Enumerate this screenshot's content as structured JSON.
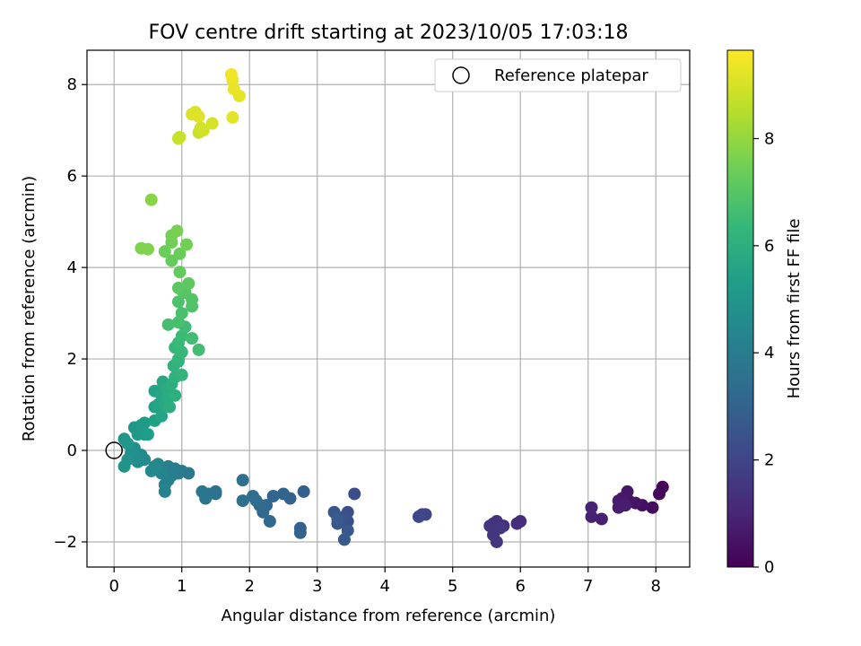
{
  "chart_data": {
    "type": "scatter",
    "title": "FOV centre drift starting at 2023/10/05 17:03:18",
    "xlabel": "Angular distance from reference (arcmin)",
    "ylabel": "Rotation from reference (arcmin)",
    "xlim": [
      -0.4,
      8.5
    ],
    "ylim": [
      -2.55,
      8.75
    ],
    "xticks": [
      0,
      1,
      2,
      3,
      4,
      5,
      6,
      7,
      8
    ],
    "yticks": [
      -2,
      0,
      2,
      4,
      6,
      8
    ],
    "grid": true,
    "legend": {
      "placement": "top-right",
      "entries": [
        "Reference platepar"
      ]
    },
    "reference_point": {
      "x": 0,
      "y": 0
    },
    "colorbar": {
      "label": "Hours from first FF file",
      "range": [
        0,
        9.65
      ],
      "ticks": [
        0,
        2,
        4,
        6,
        8
      ],
      "colormap": [
        "#440154",
        "#482878",
        "#3e4989",
        "#31688e",
        "#26828e",
        "#1f9e89",
        "#35b779",
        "#6ece58",
        "#b5de2b",
        "#fde725"
      ]
    },
    "marker_size": 7,
    "series": [
      {
        "points": [
          {
            "x": 8.1,
            "y": -0.8,
            "c": 0.1
          },
          {
            "x": 8.05,
            "y": -0.95,
            "c": 0.2
          },
          {
            "x": 7.95,
            "y": -1.25,
            "c": 0.3
          },
          {
            "x": 7.8,
            "y": -1.2,
            "c": 0.4
          },
          {
            "x": 7.7,
            "y": -1.15,
            "c": 0.5
          },
          {
            "x": 7.6,
            "y": -1.1,
            "c": 0.55
          },
          {
            "x": 7.58,
            "y": -0.9,
            "c": 0.6
          },
          {
            "x": 7.5,
            "y": -1.05,
            "c": 0.65
          },
          {
            "x": 7.45,
            "y": -1.1,
            "c": 0.7
          },
          {
            "x": 7.45,
            "y": -1.25,
            "c": 0.75
          },
          {
            "x": 7.55,
            "y": -1.2,
            "c": 0.8
          },
          {
            "x": 7.2,
            "y": -1.5,
            "c": 0.85
          },
          {
            "x": 7.05,
            "y": -1.45,
            "c": 0.9
          },
          {
            "x": 7.05,
            "y": -1.25,
            "c": 0.95
          },
          {
            "x": 6.0,
            "y": -1.55,
            "c": 1.2
          },
          {
            "x": 5.95,
            "y": -1.6,
            "c": 1.25
          },
          {
            "x": 5.75,
            "y": -1.65,
            "c": 1.3
          },
          {
            "x": 5.65,
            "y": -1.55,
            "c": 1.35
          },
          {
            "x": 5.6,
            "y": -1.6,
            "c": 1.4
          },
          {
            "x": 5.55,
            "y": -1.65,
            "c": 1.45
          },
          {
            "x": 5.6,
            "y": -1.85,
            "c": 1.5
          },
          {
            "x": 5.65,
            "y": -2.0,
            "c": 1.55
          },
          {
            "x": 5.7,
            "y": -1.7,
            "c": 1.6
          },
          {
            "x": 4.6,
            "y": -1.4,
            "c": 2.0
          },
          {
            "x": 4.55,
            "y": -1.4,
            "c": 2.05
          },
          {
            "x": 4.5,
            "y": -1.45,
            "c": 2.1
          },
          {
            "x": 3.55,
            "y": -0.95,
            "c": 2.3
          },
          {
            "x": 3.45,
            "y": -1.35,
            "c": 2.35
          },
          {
            "x": 3.45,
            "y": -1.55,
            "c": 2.4
          },
          {
            "x": 3.4,
            "y": -1.45,
            "c": 2.45
          },
          {
            "x": 3.35,
            "y": -1.5,
            "c": 2.5
          },
          {
            "x": 3.3,
            "y": -1.6,
            "c": 2.55
          },
          {
            "x": 3.25,
            "y": -1.35,
            "c": 2.6
          },
          {
            "x": 3.45,
            "y": -1.75,
            "c": 2.65
          },
          {
            "x": 3.4,
            "y": -1.95,
            "c": 2.7
          },
          {
            "x": 3.3,
            "y": -1.5,
            "c": 2.75
          },
          {
            "x": 2.8,
            "y": -0.9,
            "c": 2.9
          },
          {
            "x": 2.75,
            "y": -1.7,
            "c": 2.95
          },
          {
            "x": 2.75,
            "y": -1.8,
            "c": 3.0
          },
          {
            "x": 2.6,
            "y": -1.05,
            "c": 3.05
          },
          {
            "x": 2.5,
            "y": -0.95,
            "c": 3.1
          },
          {
            "x": 2.35,
            "y": -1.0,
            "c": 3.15
          },
          {
            "x": 2.3,
            "y": -1.55,
            "c": 3.2
          },
          {
            "x": 2.25,
            "y": -1.2,
            "c": 3.25
          },
          {
            "x": 2.2,
            "y": -1.35,
            "c": 3.3
          },
          {
            "x": 2.15,
            "y": -1.2,
            "c": 3.35
          },
          {
            "x": 2.1,
            "y": -1.1,
            "c": 3.4
          },
          {
            "x": 2.05,
            "y": -1.0,
            "c": 3.45
          },
          {
            "x": 1.9,
            "y": -1.1,
            "c": 3.5
          },
          {
            "x": 1.9,
            "y": -0.65,
            "c": 3.55
          },
          {
            "x": 1.5,
            "y": -0.9,
            "c": 3.6
          },
          {
            "x": 1.5,
            "y": -0.95,
            "c": 3.65
          },
          {
            "x": 1.4,
            "y": -0.95,
            "c": 3.7
          },
          {
            "x": 1.35,
            "y": -1.05,
            "c": 3.75
          },
          {
            "x": 1.3,
            "y": -0.9,
            "c": 3.8
          },
          {
            "x": 1.1,
            "y": -0.5,
            "c": 3.9
          },
          {
            "x": 1.0,
            "y": -0.45,
            "c": 3.95
          },
          {
            "x": 0.95,
            "y": -0.5,
            "c": 4.0
          },
          {
            "x": 0.9,
            "y": -0.4,
            "c": 4.05
          },
          {
            "x": 0.85,
            "y": -0.55,
            "c": 4.1
          },
          {
            "x": 0.8,
            "y": -0.35,
            "c": 4.15
          },
          {
            "x": 0.8,
            "y": -0.65,
            "c": 4.2
          },
          {
            "x": 0.75,
            "y": -0.75,
            "c": 4.25
          },
          {
            "x": 0.75,
            "y": -0.9,
            "c": 4.3
          },
          {
            "x": 0.7,
            "y": -0.5,
            "c": 4.35
          },
          {
            "x": 0.7,
            "y": -0.45,
            "c": 4.4
          },
          {
            "x": 0.65,
            "y": -0.3,
            "c": 4.45
          },
          {
            "x": 0.6,
            "y": -0.35,
            "c": 4.5
          },
          {
            "x": 0.55,
            "y": -0.45,
            "c": 4.55
          },
          {
            "x": 0.45,
            "y": -0.2,
            "c": 4.6
          },
          {
            "x": 0.4,
            "y": -0.1,
            "c": 4.65
          },
          {
            "x": 0.35,
            "y": -0.25,
            "c": 4.7
          },
          {
            "x": 0.3,
            "y": -0.15,
            "c": 4.75
          },
          {
            "x": 0.3,
            "y": 0.05,
            "c": 4.8
          },
          {
            "x": 0.25,
            "y": -0.05,
            "c": 4.85
          },
          {
            "x": 0.2,
            "y": -0.2,
            "c": 4.9
          },
          {
            "x": 0.15,
            "y": -0.35,
            "c": 4.95
          },
          {
            "x": 0.15,
            "y": 0.25,
            "c": 5.0
          },
          {
            "x": 0.2,
            "y": 0.15,
            "c": 5.05
          },
          {
            "x": 0.3,
            "y": 0.5,
            "c": 5.1
          },
          {
            "x": 0.35,
            "y": 0.35,
            "c": 5.15
          },
          {
            "x": 0.4,
            "y": 0.55,
            "c": 5.2
          },
          {
            "x": 0.45,
            "y": 0.35,
            "c": 5.25
          },
          {
            "x": 0.45,
            "y": 0.6,
            "c": 5.3
          },
          {
            "x": 0.5,
            "y": 0.35,
            "c": 5.35
          },
          {
            "x": 0.6,
            "y": 0.65,
            "c": 5.45
          },
          {
            "x": 0.6,
            "y": 0.95,
            "c": 5.5
          },
          {
            "x": 0.6,
            "y": 1.3,
            "c": 5.55
          },
          {
            "x": 0.65,
            "y": 1.0,
            "c": 5.6
          },
          {
            "x": 0.7,
            "y": 0.75,
            "c": 5.65
          },
          {
            "x": 0.7,
            "y": 1.2,
            "c": 5.7
          },
          {
            "x": 0.72,
            "y": 1.5,
            "c": 5.75
          },
          {
            "x": 0.75,
            "y": 1.0,
            "c": 5.8
          },
          {
            "x": 0.75,
            "y": 1.35,
            "c": 5.85
          },
          {
            "x": 0.8,
            "y": 1.15,
            "c": 5.9
          },
          {
            "x": 0.8,
            "y": 1.3,
            "c": 5.95
          },
          {
            "x": 0.82,
            "y": 0.95,
            "c": 6.0
          },
          {
            "x": 0.85,
            "y": 1.45,
            "c": 6.05
          },
          {
            "x": 0.9,
            "y": 1.2,
            "c": 6.1
          },
          {
            "x": 0.9,
            "y": 1.6,
            "c": 6.15
          },
          {
            "x": 0.88,
            "y": 1.85,
            "c": 6.2
          },
          {
            "x": 0.95,
            "y": 1.95,
            "c": 6.25
          },
          {
            "x": 1.0,
            "y": 1.65,
            "c": 6.3
          },
          {
            "x": 0.95,
            "y": 2.0,
            "c": 6.35
          },
          {
            "x": 0.9,
            "y": 2.25,
            "c": 6.4
          },
          {
            "x": 1.0,
            "y": 2.15,
            "c": 6.45
          },
          {
            "x": 0.95,
            "y": 2.35,
            "c": 6.5
          },
          {
            "x": 1.0,
            "y": 2.5,
            "c": 6.55
          },
          {
            "x": 1.05,
            "y": 2.7,
            "c": 6.6
          },
          {
            "x": 1.15,
            "y": 2.45,
            "c": 6.65
          },
          {
            "x": 1.25,
            "y": 2.2,
            "c": 6.7
          },
          {
            "x": 0.8,
            "y": 2.75,
            "c": 6.75
          },
          {
            "x": 0.95,
            "y": 2.8,
            "c": 6.8
          },
          {
            "x": 1.0,
            "y": 3.0,
            "c": 6.85
          },
          {
            "x": 0.95,
            "y": 3.25,
            "c": 6.9
          },
          {
            "x": 1.15,
            "y": 3.15,
            "c": 6.95
          },
          {
            "x": 1.15,
            "y": 3.3,
            "c": 7.0
          },
          {
            "x": 1.05,
            "y": 3.45,
            "c": 7.05
          },
          {
            "x": 1.0,
            "y": 3.5,
            "c": 7.1
          },
          {
            "x": 0.95,
            "y": 3.55,
            "c": 7.15
          },
          {
            "x": 1.1,
            "y": 3.65,
            "c": 7.2
          },
          {
            "x": 0.97,
            "y": 3.9,
            "c": 7.3
          },
          {
            "x": 0.85,
            "y": 4.15,
            "c": 7.35
          },
          {
            "x": 0.97,
            "y": 4.3,
            "c": 7.4
          },
          {
            "x": 0.75,
            "y": 4.35,
            "c": 7.45
          },
          {
            "x": 0.85,
            "y": 4.55,
            "c": 7.5
          },
          {
            "x": 1.07,
            "y": 4.5,
            "c": 7.55
          },
          {
            "x": 0.85,
            "y": 4.7,
            "c": 7.6
          },
          {
            "x": 0.93,
            "y": 4.8,
            "c": 7.65
          },
          {
            "x": 0.4,
            "y": 4.42,
            "c": 7.75
          },
          {
            "x": 0.5,
            "y": 4.4,
            "c": 7.8
          },
          {
            "x": 0.55,
            "y": 5.48,
            "c": 7.9
          },
          {
            "x": 0.95,
            "y": 6.82,
            "c": 8.8
          },
          {
            "x": 0.97,
            "y": 6.85,
            "c": 8.85
          },
          {
            "x": 1.25,
            "y": 6.95,
            "c": 8.9
          },
          {
            "x": 1.28,
            "y": 7.05,
            "c": 8.95
          },
          {
            "x": 1.32,
            "y": 7.0,
            "c": 9.0
          },
          {
            "x": 1.45,
            "y": 7.15,
            "c": 9.05
          },
          {
            "x": 1.2,
            "y": 7.4,
            "c": 9.1
          },
          {
            "x": 1.15,
            "y": 7.35,
            "c": 9.15
          },
          {
            "x": 1.25,
            "y": 7.3,
            "c": 9.2
          },
          {
            "x": 1.75,
            "y": 7.28,
            "c": 9.25
          },
          {
            "x": 1.85,
            "y": 7.75,
            "c": 9.3
          },
          {
            "x": 1.77,
            "y": 7.9,
            "c": 9.35
          },
          {
            "x": 1.75,
            "y": 8.1,
            "c": 9.4
          },
          {
            "x": 1.73,
            "y": 8.22,
            "c": 9.45
          }
        ]
      }
    ]
  }
}
